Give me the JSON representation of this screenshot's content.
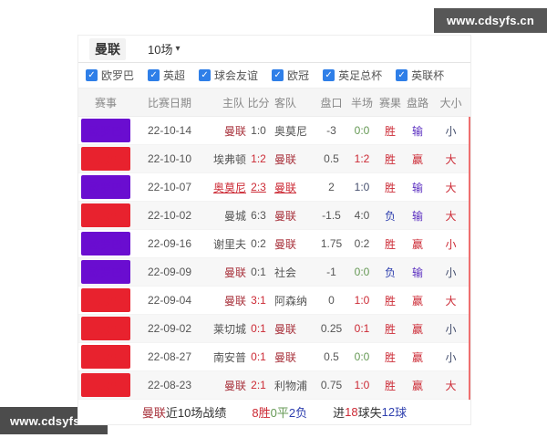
{
  "watermark": {
    "text": "www.cdsyfs.cn"
  },
  "icons": {
    "check": "✓",
    "caret_down": "▾"
  },
  "palette": {
    "red": "#cc2a35",
    "dark": "#555555",
    "green": "#669955",
    "blue": "#2e3fae",
    "violet": "#5b2fc0",
    "navy": "#454f6e",
    "maroon": "#a8323c",
    "badge_purple": "#6a0dd0",
    "badge_red": "#e8222e",
    "check_blue": "#2f7fe8"
  },
  "header": {
    "team": "曼联",
    "range": "10场"
  },
  "filters": [
    {
      "label": "欧罗巴",
      "checked": true
    },
    {
      "label": "英超",
      "checked": true
    },
    {
      "label": "球会友谊",
      "checked": true
    },
    {
      "label": "欧冠",
      "checked": true
    },
    {
      "label": "英足总杯",
      "checked": true
    },
    {
      "label": "英联杯",
      "checked": true
    }
  ],
  "table": {
    "columns": [
      "赛事",
      "比赛日期",
      "主队",
      "比分",
      "客队",
      "盘口",
      "半场",
      "赛果",
      "盘路",
      "大小"
    ],
    "rows": [
      {
        "league": "欧罗巴",
        "league_color": "#6a0dd0",
        "date": "22-10-14",
        "home": "曼联",
        "home_color": "#a8323c",
        "score": "1:0",
        "score_color": "#555555",
        "away": "奥莫尼",
        "away_color": "#555555",
        "handicap": "-3",
        "half": "0:0",
        "half_color": "#669955",
        "result": "胜",
        "result_color": "#cc2a35",
        "trend": "输",
        "trend_color": "#5b2fc0",
        "ou": "小",
        "ou_color": "#454f6e",
        "underline": false
      },
      {
        "league": "英超",
        "league_color": "#e8222e",
        "date": "22-10-10",
        "home": "埃弗顿",
        "home_color": "#555555",
        "score": "1:2",
        "score_color": "#cc2a35",
        "away": "曼联",
        "away_color": "#a8323c",
        "handicap": "0.5",
        "half": "1:2",
        "half_color": "#cc2a35",
        "result": "胜",
        "result_color": "#cc2a35",
        "trend": "赢",
        "trend_color": "#cc2a35",
        "ou": "大",
        "ou_color": "#cc2a35",
        "underline": false
      },
      {
        "league": "欧罗巴",
        "league_color": "#6a0dd0",
        "date": "22-10-07",
        "home": "奥莫尼",
        "home_color": "#cc2a35",
        "score": "2:3",
        "score_color": "#cc2a35",
        "away": "曼联",
        "away_color": "#cc2a35",
        "handicap": "2",
        "half": "1:0",
        "half_color": "#454f6e",
        "result": "胜",
        "result_color": "#cc2a35",
        "trend": "输",
        "trend_color": "#5b2fc0",
        "ou": "大",
        "ou_color": "#cc2a35",
        "underline": true
      },
      {
        "league": "英超",
        "league_color": "#e8222e",
        "date": "22-10-02",
        "home": "曼城",
        "home_color": "#555555",
        "score": "6:3",
        "score_color": "#555555",
        "away": "曼联",
        "away_color": "#a8323c",
        "handicap": "-1.5",
        "half": "4:0",
        "half_color": "#555555",
        "result": "负",
        "result_color": "#2e3fae",
        "trend": "输",
        "trend_color": "#5b2fc0",
        "ou": "大",
        "ou_color": "#cc2a35",
        "underline": false
      },
      {
        "league": "欧罗巴",
        "league_color": "#6a0dd0",
        "date": "22-09-16",
        "home": "谢里夫",
        "home_color": "#555555",
        "score": "0:2",
        "score_color": "#555555",
        "away": "曼联",
        "away_color": "#a8323c",
        "handicap": "1.75",
        "half": "0:2",
        "half_color": "#555555",
        "result": "胜",
        "result_color": "#cc2a35",
        "trend": "赢",
        "trend_color": "#cc2a35",
        "ou": "小",
        "ou_color": "#cc2a35",
        "underline": false
      },
      {
        "league": "欧罗巴",
        "league_color": "#6a0dd0",
        "date": "22-09-09",
        "home": "曼联",
        "home_color": "#a8323c",
        "score": "0:1",
        "score_color": "#555555",
        "away": "社会",
        "away_color": "#555555",
        "handicap": "-1",
        "half": "0:0",
        "half_color": "#669955",
        "result": "负",
        "result_color": "#2e3fae",
        "trend": "输",
        "trend_color": "#5b2fc0",
        "ou": "小",
        "ou_color": "#454f6e",
        "underline": false
      },
      {
        "league": "英超",
        "league_color": "#e8222e",
        "date": "22-09-04",
        "home": "曼联",
        "home_color": "#a8323c",
        "score": "3:1",
        "score_color": "#cc2a35",
        "away": "阿森纳",
        "away_color": "#555555",
        "handicap": "0",
        "half": "1:0",
        "half_color": "#cc2a35",
        "result": "胜",
        "result_color": "#cc2a35",
        "trend": "赢",
        "trend_color": "#cc2a35",
        "ou": "大",
        "ou_color": "#cc2a35",
        "underline": false
      },
      {
        "league": "英超",
        "league_color": "#e8222e",
        "date": "22-09-02",
        "home": "莱切城",
        "home_color": "#555555",
        "score": "0:1",
        "score_color": "#cc2a35",
        "away": "曼联",
        "away_color": "#a8323c",
        "handicap": "0.25",
        "half": "0:1",
        "half_color": "#cc2a35",
        "result": "胜",
        "result_color": "#cc2a35",
        "trend": "赢",
        "trend_color": "#cc2a35",
        "ou": "小",
        "ou_color": "#454f6e",
        "underline": false
      },
      {
        "league": "英超",
        "league_color": "#e8222e",
        "date": "22-08-27",
        "home": "南安普",
        "home_color": "#555555",
        "score": "0:1",
        "score_color": "#cc2a35",
        "away": "曼联",
        "away_color": "#a8323c",
        "handicap": "0.5",
        "half": "0:0",
        "half_color": "#669955",
        "result": "胜",
        "result_color": "#cc2a35",
        "trend": "赢",
        "trend_color": "#cc2a35",
        "ou": "小",
        "ou_color": "#454f6e",
        "underline": false
      },
      {
        "league": "英超",
        "league_color": "#e8222e",
        "date": "22-08-23",
        "home": "曼联",
        "home_color": "#a8323c",
        "score": "2:1",
        "score_color": "#cc2a35",
        "away": "利物浦",
        "away_color": "#555555",
        "handicap": "0.75",
        "half": "1:0",
        "half_color": "#cc2a35",
        "result": "胜",
        "result_color": "#cc2a35",
        "trend": "赢",
        "trend_color": "#cc2a35",
        "ou": "大",
        "ou_color": "#cc2a35",
        "underline": false
      }
    ]
  },
  "footer": {
    "team": "曼联",
    "label": "近10场战绩",
    "wins": "8胜",
    "draws": "0平",
    "losses": "2负",
    "goals_prefix": "进",
    "goals_for": "18",
    "goals_mid": "球失",
    "goals_against": "12",
    "goals_suffix": "球"
  }
}
